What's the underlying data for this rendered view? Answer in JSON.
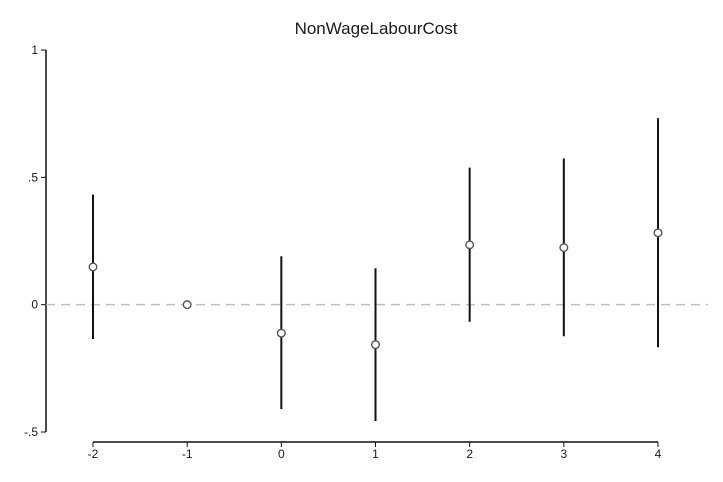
{
  "chart_data": {
    "type": "scatter",
    "title": "NonWageLabourCost",
    "xlabel": "",
    "ylabel": "",
    "x_ticks": [
      "-2",
      "-1",
      "0",
      "1",
      "2",
      "3",
      "4"
    ],
    "y_ticks": [
      "1",
      ".5",
      "0",
      "-.5"
    ],
    "ylim": [
      -0.5,
      1
    ],
    "reference_line": {
      "y": 0,
      "style": "dashed",
      "color": "#c0c0c0"
    },
    "series": [
      {
        "x": [
          -2,
          -1,
          0,
          1,
          2,
          3,
          4
        ],
        "estimate": [
          0.148,
          0.0,
          -0.112,
          -0.157,
          0.235,
          0.224,
          0.282
        ],
        "ci_low": [
          -0.135,
          0.0,
          -0.41,
          -0.457,
          -0.067,
          -0.124,
          -0.167
        ],
        "ci_high": [
          0.432,
          0.0,
          0.19,
          0.143,
          0.538,
          0.574,
          0.732
        ]
      }
    ],
    "colors": {
      "marker": "#555555",
      "errorbar": "#111111",
      "axis": "#111111"
    },
    "grid": false
  }
}
